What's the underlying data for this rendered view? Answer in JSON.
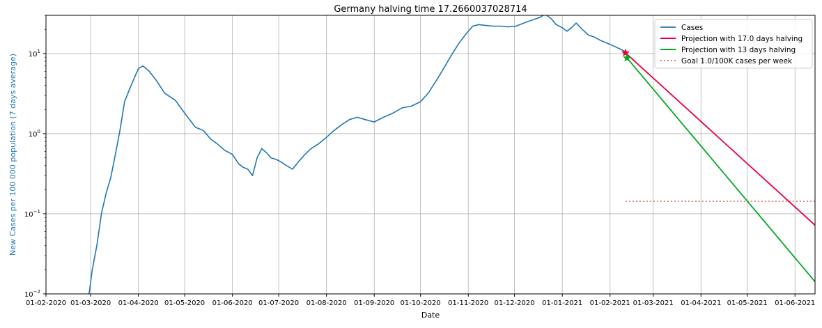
{
  "chart_data": {
    "type": "line",
    "title": "Germany halving time 17.2660037028714",
    "xlabel": "Date",
    "ylabel": "New Cases per 100 000 population (7 days average)",
    "yscale": "log",
    "ylim": [
      0.01,
      30
    ],
    "xlim": [
      "2020-02-01",
      "2021-06-14"
    ],
    "grid": true,
    "legend_position": "upper right",
    "x_ticks": [
      "01-02-2020",
      "01-03-2020",
      "01-04-2020",
      "01-05-2020",
      "01-06-2020",
      "01-07-2020",
      "01-08-2020",
      "01-09-2020",
      "01-10-2020",
      "01-11-2020",
      "01-12-2020",
      "01-01-2021",
      "01-02-2021",
      "01-03-2021",
      "01-04-2021",
      "01-05-2021",
      "01-06-2021"
    ],
    "y_ticks": [
      {
        "value": 0.01,
        "base": "10",
        "exp": "−2"
      },
      {
        "value": 0.1,
        "base": "10",
        "exp": "−1"
      },
      {
        "value": 1,
        "base": "10",
        "exp": "0"
      },
      {
        "value": 10,
        "base": "10",
        "exp": "1"
      }
    ],
    "colors": {
      "ylabel": "#1f77b4",
      "cases": "#1f77b4",
      "proj1": "#e8003d",
      "proj2": "#00aa22",
      "goal": "#d9534f",
      "grid": "#b0b0b0"
    },
    "series": [
      {
        "name": "Cases",
        "x": [
          "2020-02-29",
          "2020-03-02",
          "2020-03-05",
          "2020-03-08",
          "2020-03-11",
          "2020-03-14",
          "2020-03-17",
          "2020-03-20",
          "2020-03-23",
          "2020-03-26",
          "2020-03-29",
          "2020-04-01",
          "2020-04-04",
          "2020-04-08",
          "2020-04-13",
          "2020-04-18",
          "2020-04-25",
          "2020-05-02",
          "2020-05-08",
          "2020-05-13",
          "2020-05-18",
          "2020-05-22",
          "2020-05-27",
          "2020-06-01",
          "2020-06-05",
          "2020-06-08",
          "2020-06-11",
          "2020-06-14",
          "2020-06-17",
          "2020-06-20",
          "2020-06-23",
          "2020-06-26",
          "2020-06-29",
          "2020-07-02",
          "2020-07-06",
          "2020-07-10",
          "2020-07-14",
          "2020-07-18",
          "2020-07-22",
          "2020-07-27",
          "2020-08-01",
          "2020-08-06",
          "2020-08-11",
          "2020-08-16",
          "2020-08-21",
          "2020-08-26",
          "2020-09-01",
          "2020-09-07",
          "2020-09-13",
          "2020-09-19",
          "2020-09-25",
          "2020-10-01",
          "2020-10-06",
          "2020-10-11",
          "2020-10-16",
          "2020-10-21",
          "2020-10-26",
          "2020-10-31",
          "2020-11-04",
          "2020-11-08",
          "2020-11-12",
          "2020-11-17",
          "2020-11-22",
          "2020-11-27",
          "2020-12-02",
          "2020-12-07",
          "2020-12-12",
          "2020-12-17",
          "2020-12-21",
          "2020-12-25",
          "2020-12-28",
          "2021-01-01",
          "2021-01-04",
          "2021-01-07",
          "2021-01-10",
          "2021-01-14",
          "2021-01-18",
          "2021-01-22",
          "2021-01-26",
          "2021-01-30",
          "2021-02-03",
          "2021-02-07",
          "2021-02-11"
        ],
        "values": [
          0.01,
          0.02,
          0.04,
          0.1,
          0.18,
          0.28,
          0.55,
          1.1,
          2.5,
          3.5,
          4.8,
          6.5,
          7.0,
          6.0,
          4.5,
          3.2,
          2.6,
          1.7,
          1.2,
          1.1,
          0.85,
          0.75,
          0.62,
          0.55,
          0.42,
          0.38,
          0.36,
          0.3,
          0.5,
          0.65,
          0.58,
          0.5,
          0.48,
          0.45,
          0.4,
          0.36,
          0.45,
          0.55,
          0.65,
          0.75,
          0.9,
          1.1,
          1.3,
          1.5,
          1.6,
          1.5,
          1.4,
          1.6,
          1.8,
          2.1,
          2.2,
          2.5,
          3.2,
          4.5,
          6.5,
          9.5,
          13.5,
          18.0,
          22.0,
          23.0,
          22.5,
          22.0,
          22.0,
          21.5,
          22.0,
          24.0,
          26.0,
          28.0,
          31.0,
          27.0,
          23.0,
          21.0,
          19.0,
          21.0,
          24.0,
          20.0,
          17.0,
          16.0,
          14.5,
          13.5,
          12.5,
          11.5,
          10.5
        ]
      },
      {
        "name": "Projection with 17.0 days halving",
        "x": [
          "2021-02-11",
          "2021-06-14"
        ],
        "values": [
          10.2,
          0.072
        ]
      },
      {
        "name": "Projection with 13 days halving",
        "x": [
          "2021-02-12",
          "2021-06-14"
        ],
        "values": [
          8.8,
          0.0142
        ]
      },
      {
        "name": "Goal 1.0/100K cases per week",
        "x": [
          "2021-02-11",
          "2021-06-14"
        ],
        "values": [
          0.1429,
          0.1429
        ]
      }
    ],
    "markers": [
      {
        "x": "2021-02-11",
        "y": 10.2,
        "color": "#e8003d"
      },
      {
        "x": "2021-02-12",
        "y": 8.8,
        "color": "#00aa22"
      }
    ]
  }
}
